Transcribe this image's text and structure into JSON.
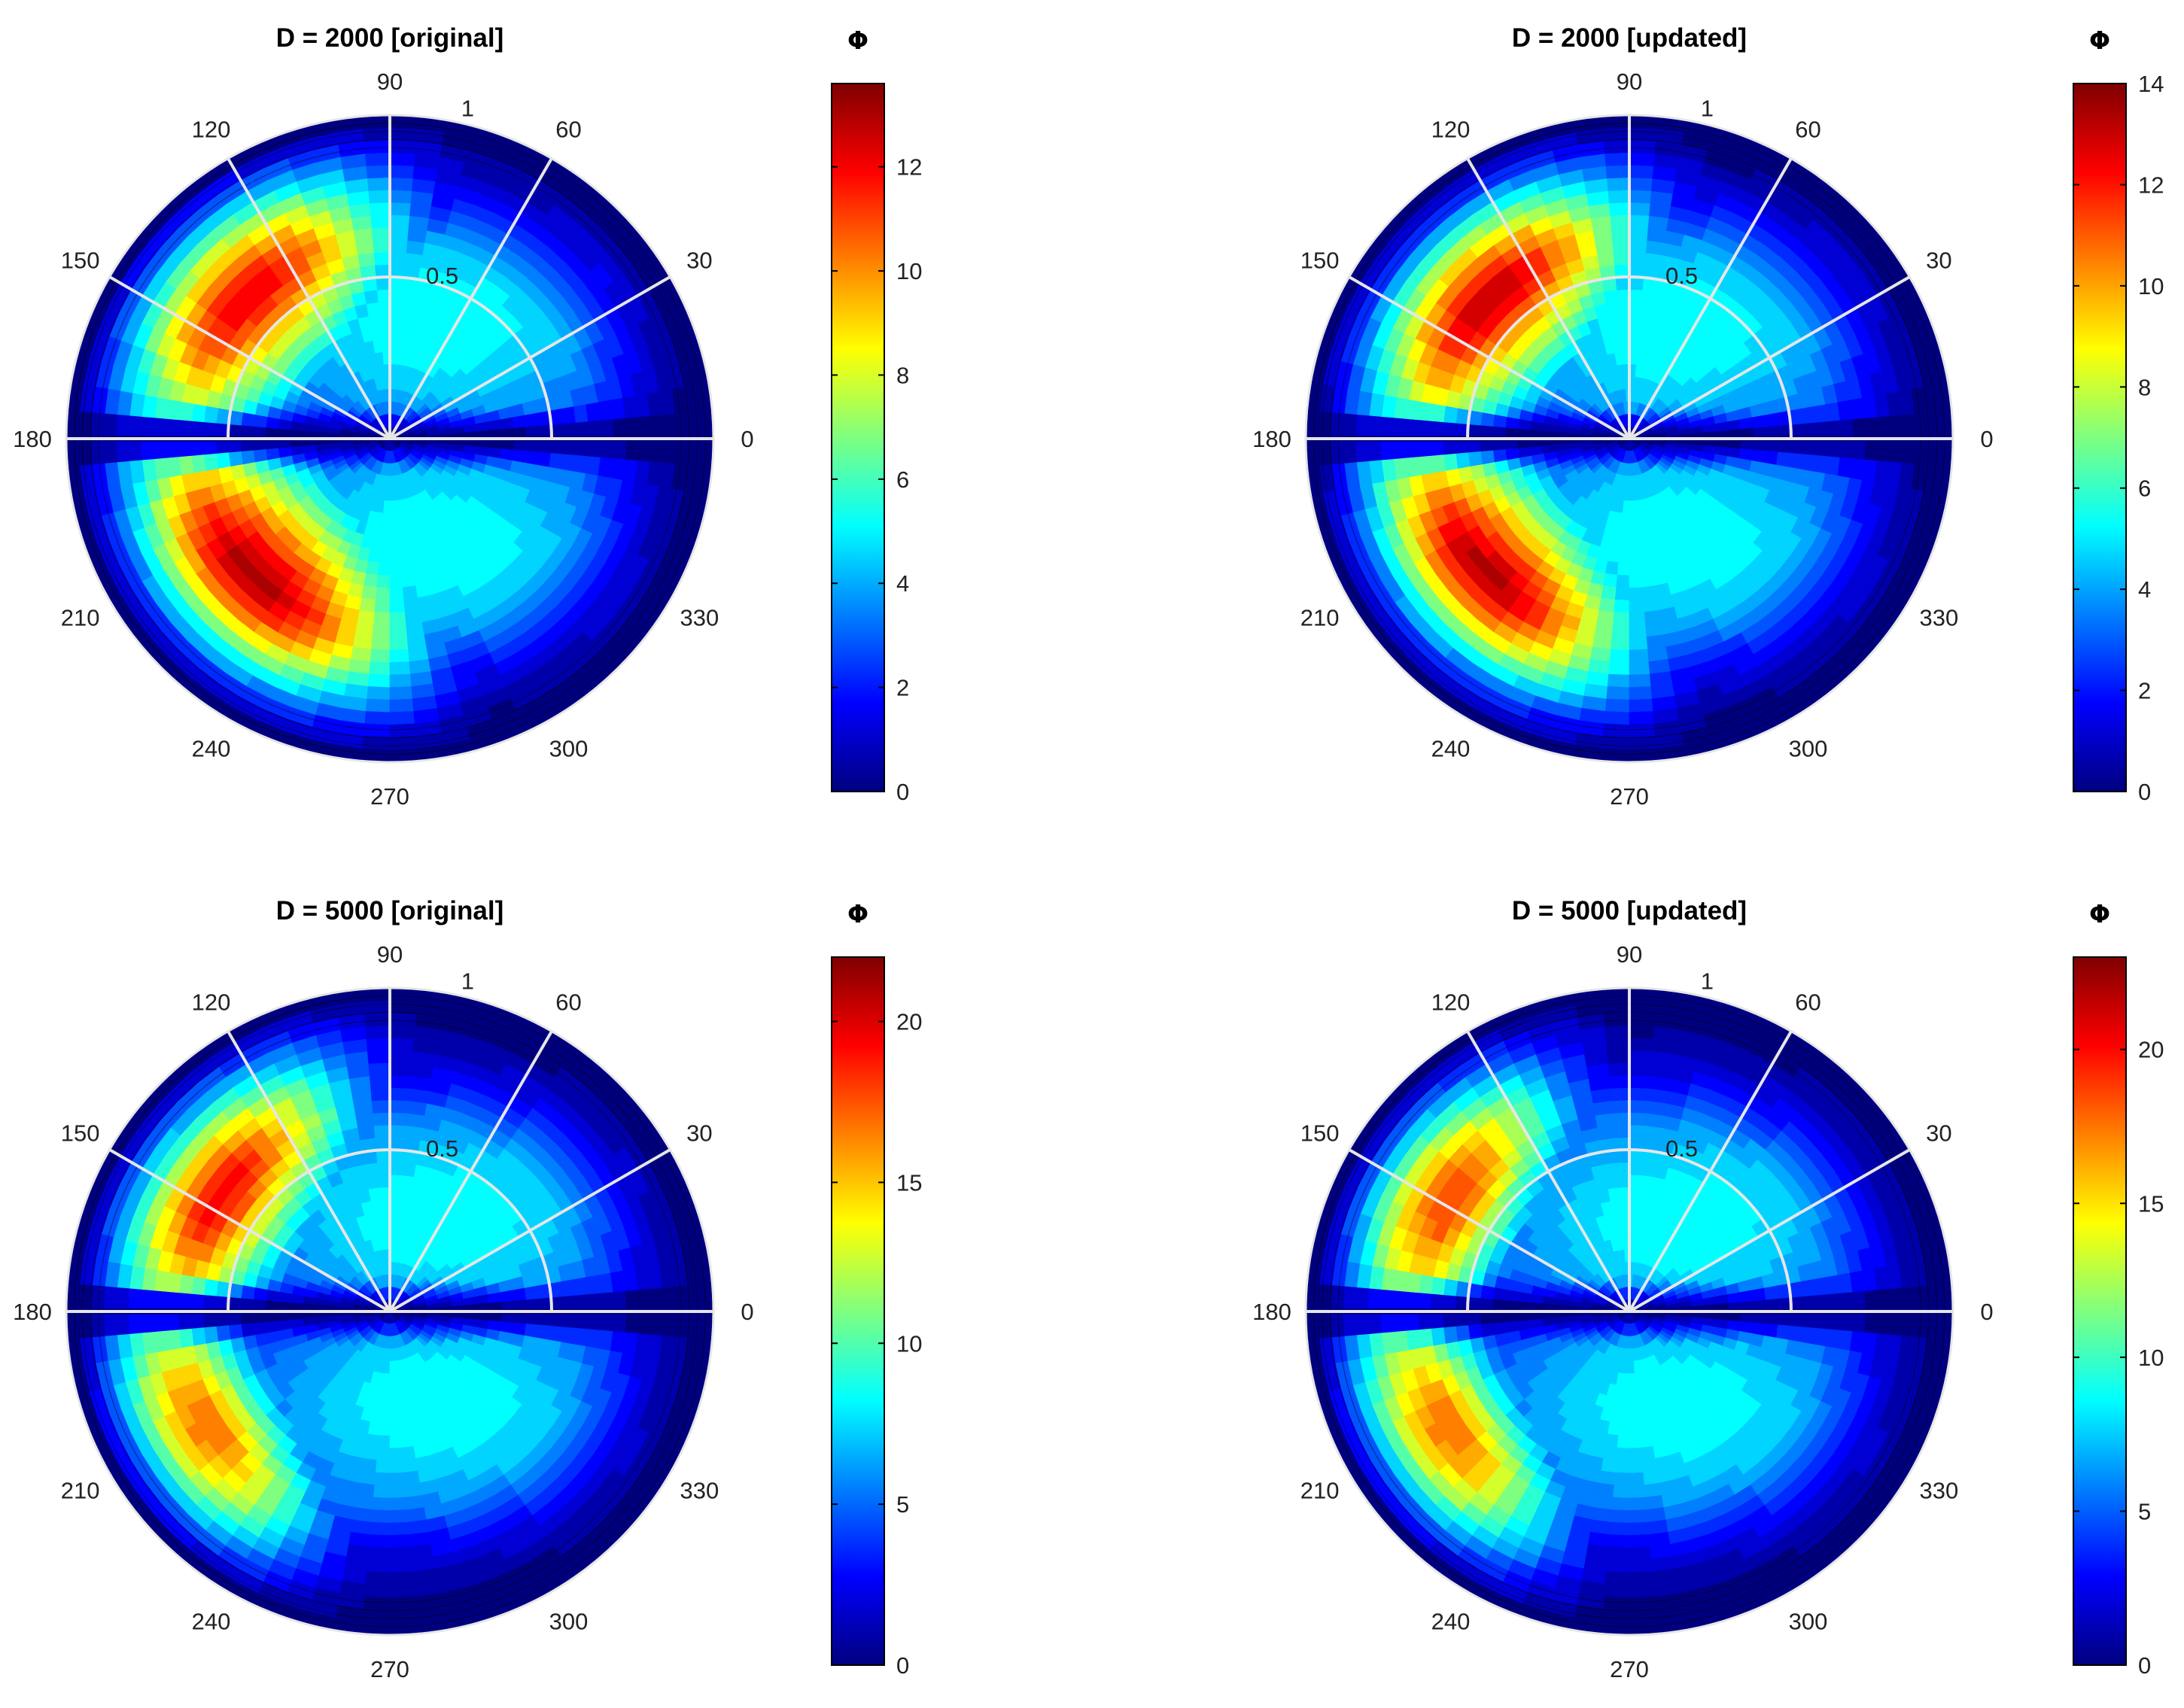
{
  "figure": {
    "colormap": "jet",
    "colors": {
      "background": "#ffffff",
      "grid": "#e6e6e6",
      "contour_line": "#000000",
      "colormap_stops": [
        "#00007f",
        "#0000ff",
        "#007fff",
        "#00ffff",
        "#7fff7f",
        "#ffff00",
        "#ff7f00",
        "#ff0000",
        "#7f0000"
      ]
    }
  },
  "chart_data": [
    {
      "type": "polar-contour",
      "title": "D = 2000 [original]",
      "colorbar": {
        "label": "Φ",
        "min": 0,
        "max": 13.6,
        "ticks": [
          "0",
          "2",
          "4",
          "6",
          "8",
          "10",
          "12"
        ]
      },
      "angle_ticks": [
        "0",
        "30",
        "60",
        "90",
        "120",
        "150",
        "180",
        "210",
        "240",
        "270",
        "300",
        "330"
      ],
      "radius_ticks": [
        "0.5",
        "1"
      ],
      "rlim": [
        0,
        1
      ],
      "grid": true,
      "contour_levels": 24,
      "peaks": [
        {
          "hemisphere": "upper",
          "angle": 135,
          "r": 0.72,
          "value": 13.6,
          "spread": 0.28,
          "elong_along": 0.75
        },
        {
          "hemisphere": "lower",
          "angle": 225,
          "r": 0.65,
          "value": 13.6,
          "spread": 0.28,
          "elong_along": 0.75
        }
      ]
    },
    {
      "type": "polar-contour",
      "title": "D = 2000 [updated]",
      "colorbar": {
        "label": "Φ",
        "min": 0,
        "max": 14,
        "ticks": [
          "0",
          "2",
          "4",
          "6",
          "8",
          "10",
          "12",
          "14"
        ]
      },
      "angle_ticks": [
        "0",
        "30",
        "60",
        "90",
        "120",
        "150",
        "180",
        "210",
        "240",
        "270",
        "300",
        "330"
      ],
      "radius_ticks": [
        "0.5",
        "1"
      ],
      "rlim": [
        0,
        1
      ],
      "grid": true,
      "contour_levels": 24,
      "peaks": [
        {
          "hemisphere": "upper",
          "angle": 135,
          "r": 0.68,
          "value": 14,
          "spread": 0.26,
          "elong_along": 0.8
        },
        {
          "hemisphere": "lower",
          "angle": 223,
          "r": 0.66,
          "value": 14,
          "spread": 0.26,
          "elong_along": 0.8
        }
      ]
    },
    {
      "type": "polar-contour",
      "title": "D = 5000 [original]",
      "colorbar": {
        "label": "Φ",
        "min": 0,
        "max": 22,
        "ticks": [
          "0",
          "5",
          "10",
          "15",
          "20"
        ]
      },
      "angle_ticks": [
        "0",
        "30",
        "60",
        "90",
        "120",
        "150",
        "180",
        "210",
        "240",
        "270",
        "300",
        "330"
      ],
      "radius_ticks": [
        "0.5",
        "1"
      ],
      "rlim": [
        0,
        1
      ],
      "grid": true,
      "contour_levels": 24,
      "peaks": [
        {
          "hemisphere": "upper",
          "angle": 145,
          "r": 0.72,
          "value": 22,
          "spread": 0.24,
          "elong_along": 1.0
        },
        {
          "hemisphere": "lower",
          "angle": 212,
          "r": 0.78,
          "value": 22,
          "spread": 0.22,
          "elong_along": 1.0
        }
      ]
    },
    {
      "type": "polar-contour",
      "title": "D = 5000 [updated]",
      "colorbar": {
        "label": "Φ",
        "min": 0,
        "max": 23,
        "ticks": [
          "0",
          "5",
          "10",
          "15",
          "20"
        ]
      },
      "angle_ticks": [
        "0",
        "30",
        "60",
        "90",
        "120",
        "150",
        "180",
        "210",
        "240",
        "270",
        "300",
        "330"
      ],
      "radius_ticks": [
        "0.5",
        "1"
      ],
      "rlim": [
        0,
        1
      ],
      "grid": true,
      "contour_levels": 24,
      "peaks": [
        {
          "hemisphere": "upper",
          "angle": 148,
          "r": 0.75,
          "value": 23,
          "spread": 0.22,
          "elong_along": 1.0
        },
        {
          "hemisphere": "lower",
          "angle": 213,
          "r": 0.78,
          "value": 23,
          "spread": 0.22,
          "elong_along": 1.0
        }
      ]
    }
  ]
}
